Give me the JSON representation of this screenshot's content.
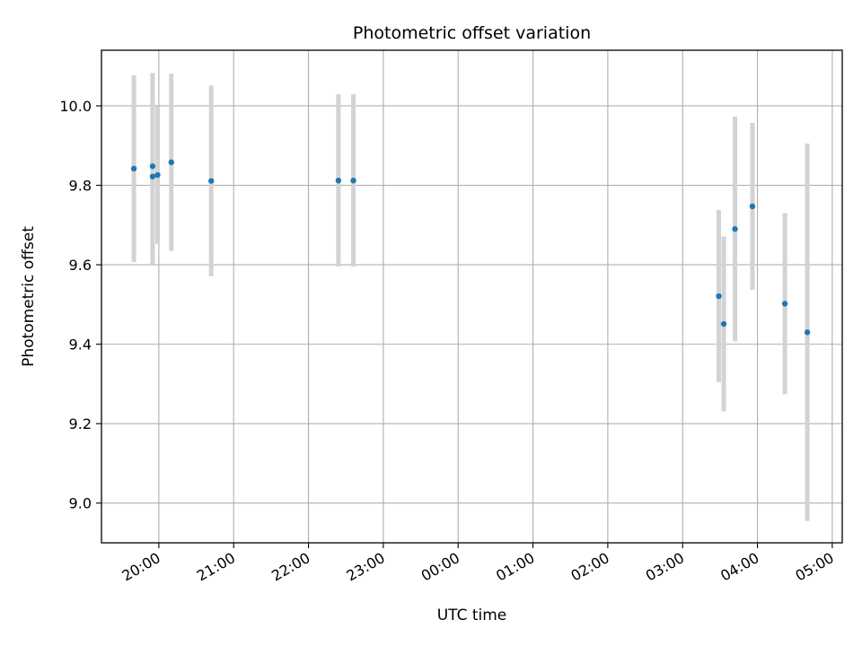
{
  "chart_data": {
    "type": "scatter",
    "title": "Photometric offset variation",
    "xlabel": "UTC time",
    "ylabel": "Photometric offset",
    "x_tick_labels": [
      "20:00",
      "21:00",
      "22:00",
      "23:00",
      "00:00",
      "01:00",
      "02:00",
      "03:00",
      "04:00",
      "05:00"
    ],
    "y_tick_labels": [
      "9.0",
      "9.2",
      "9.4",
      "9.6",
      "9.8",
      "10.0"
    ],
    "y_ticks": [
      9.0,
      9.2,
      9.4,
      9.6,
      9.8,
      10.0
    ],
    "xlim": [
      "19:14",
      "05:08"
    ],
    "ylim": [
      8.9,
      10.14
    ],
    "grid": true,
    "marker_color": "#1f77b4",
    "errorbar_color": "#d3d3d3",
    "points": [
      {
        "time": "19:40",
        "y": 9.842,
        "err": 0.235
      },
      {
        "time": "19:55",
        "y": 9.848,
        "err": 0.235
      },
      {
        "time": "19:55",
        "y": 9.822,
        "err": 0.22
      },
      {
        "time": "19:59",
        "y": 9.826,
        "err": 0.173
      },
      {
        "time": "20:10",
        "y": 9.858,
        "err": 0.223
      },
      {
        "time": "20:42",
        "y": 9.811,
        "err": 0.24
      },
      {
        "time": "22:24",
        "y": 9.812,
        "err": 0.217
      },
      {
        "time": "22:36",
        "y": 9.812,
        "err": 0.217
      },
      {
        "time": "03:29",
        "y": 9.521,
        "err": 0.217
      },
      {
        "time": "03:33",
        "y": 9.451,
        "err": 0.22
      },
      {
        "time": "03:42",
        "y": 9.69,
        "err": 0.283
      },
      {
        "time": "03:56",
        "y": 9.747,
        "err": 0.21
      },
      {
        "time": "04:22",
        "y": 9.502,
        "err": 0.228
      },
      {
        "time": "04:40",
        "y": 9.43,
        "err": 0.475
      }
    ]
  }
}
